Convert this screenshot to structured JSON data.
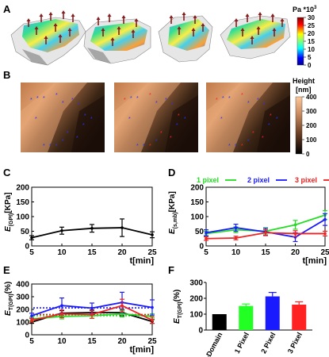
{
  "panels": {
    "A": {
      "label": "A",
      "colorbar": {
        "unit": "Pa *10",
        "unit_exp": "3",
        "ticks": [
          "30",
          "25",
          "20",
          "15",
          "10",
          "5",
          "0"
        ]
      }
    },
    "B": {
      "label": "B",
      "colorbar": {
        "title": "Height",
        "unit": "[nm]",
        "ticks": [
          "400",
          "300",
          "200",
          "100",
          "0"
        ]
      }
    },
    "C": {
      "label": "C"
    },
    "D": {
      "label": "D"
    },
    "E": {
      "label": "E"
    },
    "F": {
      "label": "F"
    }
  },
  "chart_data": [
    {
      "panel": "C",
      "type": "line",
      "ylabel": "E(GPI)[KPa]",
      "xlabel": "t[min]",
      "x": [
        5,
        10,
        15,
        20,
        25
      ],
      "xlim": [
        5,
        25
      ],
      "ylim": [
        0,
        200
      ],
      "xticks": [
        "5",
        "10",
        "15",
        "20",
        "25"
      ],
      "yticks": [
        "0",
        "50",
        "100",
        "150",
        "200"
      ],
      "series": [
        {
          "color": "#000000",
          "values": [
            28,
            52,
            60,
            62,
            38
          ],
          "errors": [
            7,
            12,
            13,
            30,
            10
          ]
        }
      ]
    },
    {
      "panel": "D",
      "type": "line",
      "ylabel": "E(s,mb)[KPa]",
      "xlabel": "t[min]",
      "x": [
        5,
        10,
        15,
        20,
        25
      ],
      "xlim": [
        5,
        25
      ],
      "ylim": [
        0,
        200
      ],
      "xticks": [
        "5",
        "10",
        "15",
        "20",
        "25"
      ],
      "yticks": [
        "0",
        "50",
        "100",
        "150",
        "200"
      ],
      "legend": [
        "1 pixel",
        "2 pixel",
        "3 pixel"
      ],
      "series": [
        {
          "name": "1 pixel",
          "color": "#22dd22",
          "values": [
            42,
            55,
            50,
            72,
            105
          ],
          "errors": [
            8,
            10,
            12,
            15,
            15
          ]
        },
        {
          "name": "2 pixel",
          "color": "#1a1aff",
          "values": [
            45,
            62,
            48,
            30,
            90
          ],
          "errors": [
            10,
            12,
            12,
            15,
            20
          ]
        },
        {
          "name": "3 pixel",
          "color": "#ee2222",
          "values": [
            25,
            27,
            45,
            42,
            42
          ],
          "errors": [
            6,
            6,
            10,
            10,
            8
          ]
        }
      ]
    },
    {
      "panel": "E",
      "type": "line",
      "ylabel": "ET(GPI)(%)",
      "xlabel": "t[min]",
      "x": [
        5,
        10,
        15,
        20,
        25
      ],
      "xlim": [
        5,
        25
      ],
      "ylim": [
        0,
        400
      ],
      "xticks": [
        "5",
        "10",
        "15",
        "20",
        "25"
      ],
      "yticks": [
        "0",
        "100",
        "200",
        "300",
        "400"
      ],
      "series": [
        {
          "color": "#000000",
          "values": [
            100,
            170,
            175,
            175,
            105
          ],
          "errors": [
            10,
            20,
            20,
            25,
            15
          ]
        },
        {
          "color": "#22dd22",
          "values": [
            125,
            145,
            150,
            165,
            145
          ],
          "errors": [
            15,
            20,
            20,
            25,
            20
          ]
        },
        {
          "color": "#1a1aff",
          "values": [
            150,
            230,
            210,
            255,
            215
          ],
          "errors": [
            20,
            60,
            40,
            80,
            60
          ]
        },
        {
          "color": "#ee2222",
          "values": [
            115,
            165,
            160,
            230,
            115
          ],
          "errors": [
            15,
            30,
            30,
            50,
            25
          ]
        }
      ],
      "dotted_lines": [
        {
          "color": "#1a1aff",
          "value": 212
        },
        {
          "color": "#ee2222",
          "value": 160
        },
        {
          "color": "#22dd22",
          "value": 150
        }
      ]
    },
    {
      "panel": "F",
      "type": "bar",
      "ylabel": "ET(GPI)(%)",
      "categories": [
        "GPI-Domain",
        "1 Pixel",
        "2 Pixel",
        "3 Pixel"
      ],
      "values": [
        100,
        152,
        212,
        160
      ],
      "errors": [
        0,
        12,
        25,
        18
      ],
      "colors": [
        "#000000",
        "#22ff22",
        "#1a1aff",
        "#ff2222"
      ],
      "ylim": [
        0,
        300
      ],
      "yticks": [
        "0",
        "100",
        "200",
        "300"
      ]
    }
  ]
}
